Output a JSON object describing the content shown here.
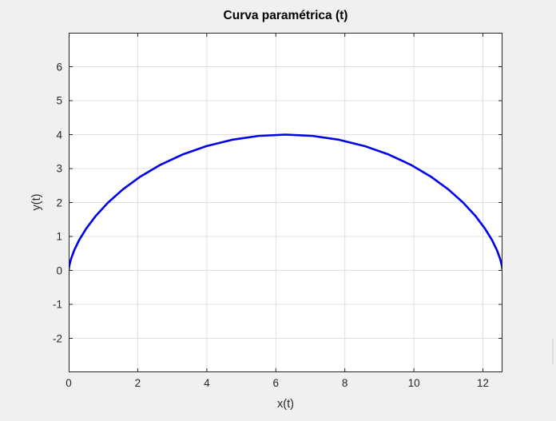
{
  "window": {
    "background_color": "#f0f0f0"
  },
  "chart_data": {
    "type": "line",
    "title": "Curva paramétrica (t)",
    "xlabel": "x(t)",
    "ylabel": "y(t)",
    "xlim": [
      0,
      12.5664
    ],
    "ylim": [
      -3,
      7
    ],
    "x_ticks": [
      0,
      2,
      4,
      6,
      8,
      10,
      12
    ],
    "y_ticks": [
      -2,
      -1,
      0,
      1,
      2,
      3,
      4,
      5,
      6
    ],
    "grid": true,
    "legend": false,
    "axes_background": "#ffffff",
    "grid_color": "#e0e0e0",
    "axis_color": "#262626",
    "tick_label_color": "#262626",
    "series": [
      {
        "name": "parametric-curve",
        "color": "#0000ee",
        "line_width": 2.6,
        "x": [
          0,
          0.0025,
          0.02,
          0.067,
          0.1566,
          0.3006,
          0.5084,
          0.7873,
          1.1416,
          1.5727,
          2.0792,
          2.6567,
          3.2982,
          3.9939,
          4.7324,
          5.5003,
          6.2832,
          7.0661,
          7.8339,
          8.5724,
          9.2682,
          9.9096,
          10.4871,
          10.9936,
          11.4248,
          11.779,
          12.0579,
          12.2658,
          12.4098,
          12.4994,
          12.5463,
          12.5639,
          12.5664
        ],
        "y": [
          0,
          0.0384,
          0.1522,
          0.3371,
          0.5858,
          0.8889,
          1.2346,
          1.6098,
          2,
          2.3902,
          2.7654,
          3.1111,
          3.4142,
          3.6629,
          3.8478,
          3.9616,
          4,
          3.9616,
          3.8478,
          3.6629,
          3.4142,
          3.1111,
          2.7654,
          2.3902,
          2,
          1.6098,
          1.2346,
          0.8889,
          0.5858,
          0.3371,
          0.1522,
          0.0384,
          0
        ]
      }
    ]
  }
}
